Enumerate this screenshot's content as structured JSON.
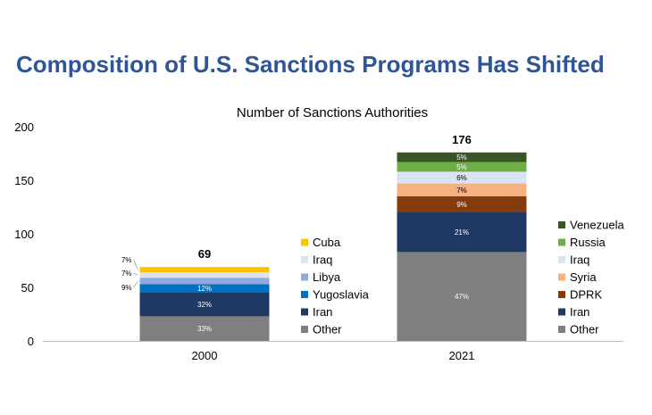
{
  "headline": "Composition of U.S. Sanctions Programs Has Shifted",
  "chart_data": {
    "type": "bar",
    "stacked": true,
    "title": "Number of Sanctions Authorities",
    "xlabel": "",
    "ylabel": "",
    "ylim": [
      0,
      200
    ],
    "yticks": [
      "0",
      "50",
      "100",
      "150",
      "200"
    ],
    "grid": false,
    "bars": [
      {
        "category": "2000",
        "total": 69,
        "total_label": "69",
        "legend_placement": "right",
        "segments": [
          {
            "name": "Other",
            "value": 23,
            "label": "33%",
            "color": "#7f7f7f",
            "label_position": "inside"
          },
          {
            "name": "Iran",
            "value": 22,
            "label": "32%",
            "color": "#1f3864",
            "label_position": "inside"
          },
          {
            "name": "Yugoslavia",
            "value": 8,
            "label": "12%",
            "color": "#0070c0",
            "label_position": "inside"
          },
          {
            "name": "Libya",
            "value": 6,
            "label": "9%",
            "color": "#8faadc",
            "label_position": "outside"
          },
          {
            "name": "Iraq",
            "value": 5,
            "label": "7%",
            "color": "#dae3f3",
            "label_position": "outside"
          },
          {
            "name": "Cuba",
            "value": 5,
            "label": "7%",
            "color": "#ffc000",
            "label_position": "outside"
          }
        ]
      },
      {
        "category": "2021",
        "total": 176,
        "total_label": "176",
        "legend_placement": "right",
        "segments": [
          {
            "name": "Other",
            "value": 83,
            "label": "47%",
            "color": "#7f7f7f",
            "label_position": "inside"
          },
          {
            "name": "Iran",
            "value": 37,
            "label": "21%",
            "color": "#1f3864",
            "label_position": "inside"
          },
          {
            "name": "DPRK",
            "value": 15,
            "label": "9%",
            "color": "#843c0c",
            "label_position": "inside"
          },
          {
            "name": "Syria",
            "value": 12,
            "label": "7%",
            "color": "#f4b183",
            "label_position": "inside"
          },
          {
            "name": "Iraq",
            "value": 11,
            "label": "6%",
            "color": "#dae3f3",
            "label_position": "inside"
          },
          {
            "name": "Russia",
            "value": 9,
            "label": "5%",
            "color": "#70ad47",
            "label_position": "inside"
          },
          {
            "name": "Venezuela",
            "value": 9,
            "label": "5%",
            "color": "#375623",
            "label_position": "inside"
          }
        ]
      }
    ]
  }
}
